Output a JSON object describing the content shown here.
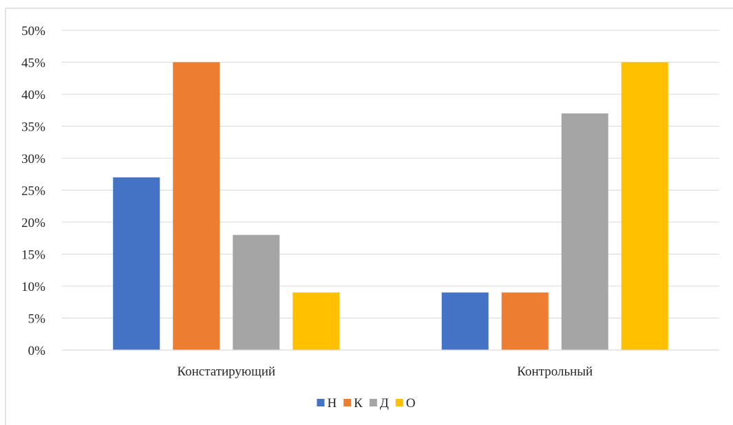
{
  "chart_data": {
    "type": "bar",
    "categories": [
      "Констатирующий",
      "Контрольный"
    ],
    "series": [
      {
        "name": "Н",
        "values": [
          27,
          9
        ],
        "color": "#4472C4"
      },
      {
        "name": "К",
        "values": [
          45,
          9
        ],
        "color": "#ED7D31"
      },
      {
        "name": "Д",
        "values": [
          18,
          37
        ],
        "color": "#A5A5A5"
      },
      {
        "name": "О",
        "values": [
          9,
          45
        ],
        "color": "#FFC000"
      }
    ],
    "ylim": [
      0,
      50
    ],
    "yticks": [
      0,
      5,
      10,
      15,
      20,
      25,
      30,
      35,
      40,
      45,
      50
    ],
    "ytick_labels": [
      "0%",
      "5%",
      "10%",
      "15%",
      "20%",
      "25%",
      "30%",
      "35%",
      "40%",
      "45%",
      "50%"
    ],
    "grid": true,
    "legend_position": "bottom",
    "title": "",
    "xlabel": "",
    "ylabel": ""
  },
  "colors": {
    "gridline": "#D9D9D9",
    "frame_border": "#D9D9D9",
    "text": "#262626"
  }
}
